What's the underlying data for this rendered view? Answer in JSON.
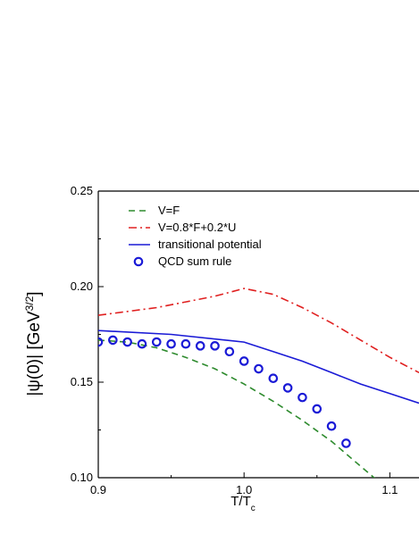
{
  "chart_data": {
    "type": "line",
    "xlabel": {
      "main": "T/T",
      "sub": "c"
    },
    "ylabel": {
      "main": "|ψ(0)| [GeV",
      "sup": "3/2",
      "tail": "]"
    },
    "xlim": [
      0.9,
      1.12
    ],
    "ylim": [
      0.1,
      0.25
    ],
    "x_ticks": [
      {
        "value": 0.9,
        "label": "0.9"
      },
      {
        "value": 1.0,
        "label": "1.0"
      },
      {
        "value": 1.1,
        "label": "1.1"
      }
    ],
    "y_ticks": [
      {
        "value": 0.1,
        "label": "0.10"
      },
      {
        "value": 0.15,
        "label": "0.15"
      },
      {
        "value": 0.2,
        "label": "0.20"
      },
      {
        "value": 0.25,
        "label": "0.25"
      }
    ],
    "legend_position": "top-left",
    "series": [
      {
        "name": "V=F",
        "style": "dashed",
        "color": "#2e8b2e",
        "x": [
          0.9,
          0.92,
          0.94,
          0.96,
          0.98,
          1.0,
          1.02,
          1.04,
          1.06,
          1.08,
          1.1
        ],
        "y": [
          0.172,
          0.171,
          0.168,
          0.163,
          0.157,
          0.149,
          0.14,
          0.13,
          0.119,
          0.106,
          0.093
        ]
      },
      {
        "name": "V=0.8*F+0.2*U",
        "style": "dashdot",
        "color": "#e02020",
        "x": [
          0.9,
          0.92,
          0.94,
          0.96,
          0.98,
          1.0,
          1.02,
          1.04,
          1.06,
          1.08,
          1.1,
          1.12
        ],
        "y": [
          0.185,
          0.187,
          0.189,
          0.192,
          0.195,
          0.199,
          0.196,
          0.189,
          0.181,
          0.172,
          0.163,
          0.155
        ]
      },
      {
        "name": "transitional potential",
        "style": "solid",
        "color": "#1a1ad6",
        "x": [
          0.9,
          0.95,
          1.0,
          1.02,
          1.04,
          1.06,
          1.08,
          1.1,
          1.12
        ],
        "y": [
          0.177,
          0.175,
          0.171,
          0.166,
          0.161,
          0.155,
          0.149,
          0.144,
          0.139
        ]
      },
      {
        "name": "QCD sum rule",
        "style": "markers",
        "color": "#1a1ad6",
        "x": [
          0.9,
          0.91,
          0.92,
          0.93,
          0.94,
          0.95,
          0.96,
          0.97,
          0.98,
          0.99,
          1.0,
          1.01,
          1.02,
          1.03,
          1.04,
          1.05,
          1.06,
          1.07
        ],
        "y": [
          0.171,
          0.172,
          0.171,
          0.17,
          0.171,
          0.17,
          0.17,
          0.169,
          0.169,
          0.166,
          0.161,
          0.157,
          0.152,
          0.147,
          0.142,
          0.136,
          0.127,
          0.118
        ]
      }
    ]
  }
}
